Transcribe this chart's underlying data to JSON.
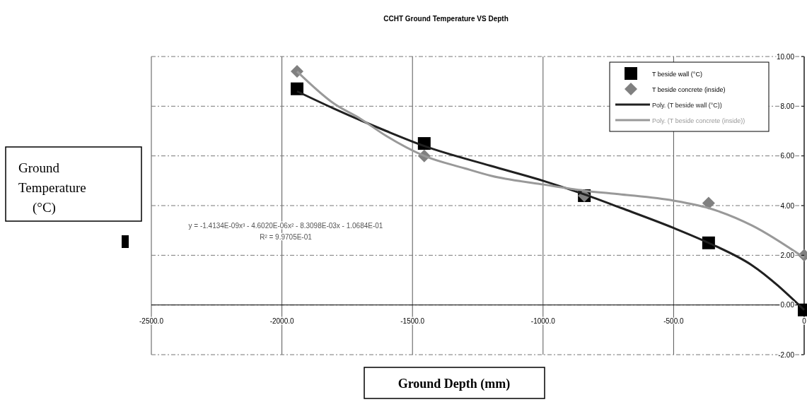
{
  "chart_data": {
    "type": "scatter",
    "title": "CCHT Ground Temperature VS Depth",
    "xlabel": "Ground Depth (mm)",
    "ylabel": "Ground Temperature (°C)",
    "xlim": [
      -2500,
      0
    ],
    "xticks": [
      {
        "value": -2500,
        "label": "-2500.0"
      },
      {
        "value": -2000,
        "label": "-2000.0"
      },
      {
        "value": -1500,
        "label": "-1500.0"
      },
      {
        "value": -1000,
        "label": "-1000.0"
      },
      {
        "value": -500,
        "label": "-500.0"
      },
      0
    ],
    "ylim": [
      -2,
      10
    ],
    "yticks": [
      {
        "value": -2,
        "label": "-2.00"
      },
      {
        "value": 0,
        "label": "0.00"
      },
      {
        "value": 2,
        "label": "2.00"
      },
      {
        "value": 4,
        "label": "4.00"
      },
      {
        "value": 6,
        "label": "6.00"
      },
      {
        "value": 8,
        "label": "8.00"
      },
      {
        "value": 10,
        "label": "10.00"
      }
    ],
    "grid": true,
    "legend": "top right",
    "annotations": [
      "y = -1.4134E-09x³ - 4.6020E-06x² - 8.3098E-03x - 1.0684E-01",
      "R² = 9.9705E-01"
    ],
    "series": [
      {
        "name": "T beside wall (°C)",
        "marker": "square",
        "color": "#000000",
        "x": [
          -1942,
          -1455,
          -842,
          -366,
          0
        ],
        "values": [
          8.7,
          6.5,
          4.4,
          2.5,
          -0.2
        ]
      },
      {
        "name": "T beside concrete (inside)",
        "marker": "diamond",
        "color": "#808080",
        "x": [
          -1942,
          -1455,
          -842,
          -366,
          0
        ],
        "values": [
          9.4,
          6.0,
          4.4,
          4.1,
          2.0
        ]
      },
      {
        "name": "Poly. (T beside wall (°C))",
        "type": "line",
        "marker": "none",
        "color": "#202020",
        "x": [
          -1942,
          -1800,
          -1600,
          -1455,
          -1200,
          -1000,
          -842,
          -700,
          -500,
          -366,
          -200,
          0
        ],
        "values": [
          8.6,
          7.9,
          7.0,
          6.4,
          5.6,
          5.0,
          4.45,
          3.9,
          3.1,
          2.5,
          1.6,
          -0.2
        ]
      },
      {
        "name": "Poly. (T beside concrete (inside))",
        "type": "line",
        "marker": "none",
        "color": "#999999",
        "x": [
          -1942,
          -1800,
          -1700,
          -1600,
          -1455,
          -1300,
          -1200,
          -1000,
          -842,
          -700,
          -500,
          -366,
          -200,
          0
        ],
        "values": [
          9.4,
          8.1,
          7.5,
          6.8,
          6.0,
          5.5,
          5.2,
          4.85,
          4.6,
          4.45,
          4.2,
          3.9,
          3.2,
          1.9
        ]
      }
    ]
  }
}
